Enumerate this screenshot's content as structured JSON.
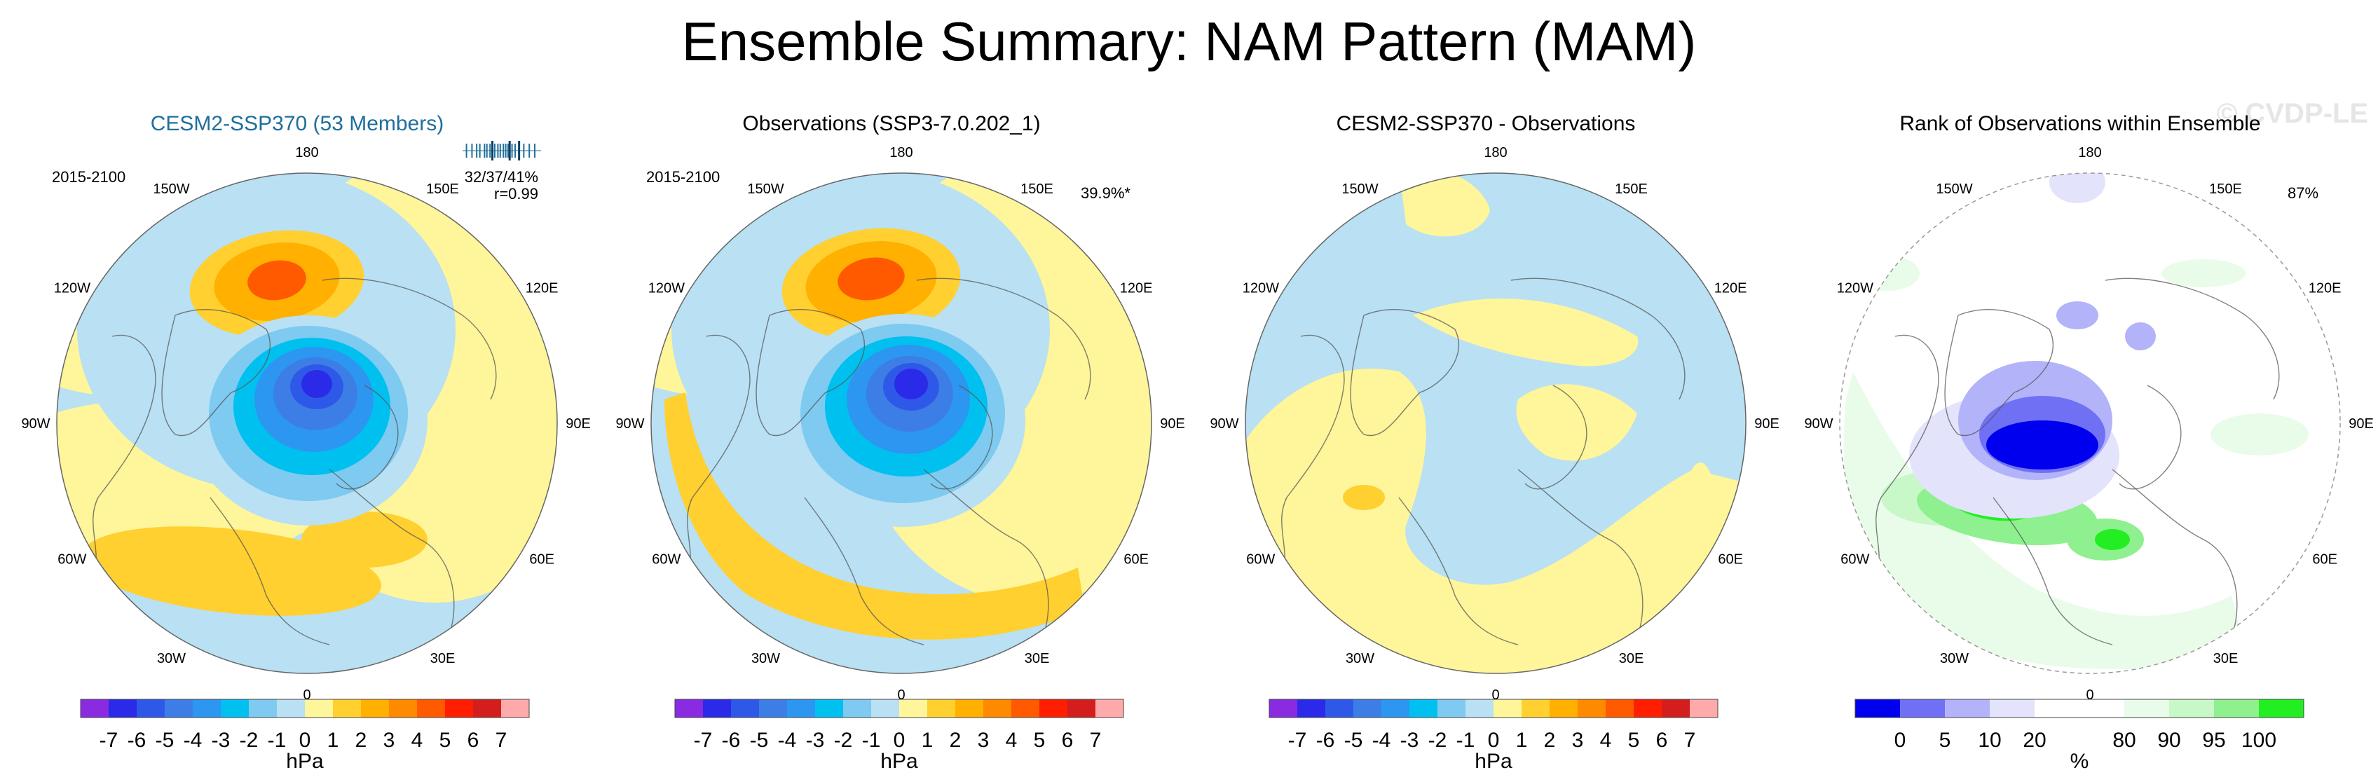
{
  "title": "Ensemble Summary: NAM Pattern (MAM)",
  "watermark": "© CVDP-LE",
  "lon_labels": [
    "180",
    "150E",
    "120E",
    "90E",
    "60E",
    "30E",
    "0",
    "30W",
    "60W",
    "90W",
    "120W",
    "150W"
  ],
  "colors": {
    "diff_scale": [
      "#8a2be2",
      "#2a2ae8",
      "#2e59e8",
      "#3d7ee6",
      "#2c96f0",
      "#00c0f0",
      "#7ecaf0",
      "#b9e0f3",
      "#fff59a",
      "#ffd030",
      "#ffb000",
      "#ff8a00",
      "#ff5a00",
      "#ff1e00",
      "#d41e1e",
      "#ffaaaa"
    ],
    "rank_scale": [
      "#0000ee",
      "#7070f5",
      "#b3b3fa",
      "#e3e3fb",
      "#ffffff",
      "#ffffff",
      "#e9fce9",
      "#c8f7c8",
      "#8ff08f",
      "#22ee22"
    ]
  },
  "chart_data": [
    {
      "type": "heatmap",
      "title": "CESM2-SSP370 (53 Members)",
      "period": "2015-2100",
      "stats": "32/37/41%",
      "corr": "r=0.99",
      "colorbar_label": "hPa",
      "colorbar_ticks": [
        "-7",
        "-6",
        "-5",
        "-4",
        "-3",
        "-2",
        "-1",
        "0",
        "1",
        "2",
        "3",
        "4",
        "5",
        "6",
        "7"
      ],
      "ensemble_spread_marks": [
        0.05,
        0.12,
        0.18,
        0.22,
        0.28,
        0.31,
        0.35,
        0.38,
        0.41,
        0.45,
        0.48,
        0.52,
        0.55,
        0.58,
        0.6,
        0.63,
        0.67,
        0.72,
        0.78,
        0.85,
        0.92
      ],
      "highlight_marks": [
        0.38,
        0.6,
        0.72
      ]
    },
    {
      "type": "heatmap",
      "title": "Observations (SSP3-7.0.202_1)",
      "period": "2015-2100",
      "pct": "39.9%*",
      "colorbar_label": "hPa",
      "colorbar_ticks": [
        "-7",
        "-6",
        "-5",
        "-4",
        "-3",
        "-2",
        "-1",
        "0",
        "1",
        "2",
        "3",
        "4",
        "5",
        "6",
        "7"
      ]
    },
    {
      "type": "heatmap",
      "title": "CESM2-SSP370 - Observations",
      "colorbar_label": "hPa",
      "colorbar_ticks": [
        "-7",
        "-6",
        "-5",
        "-4",
        "-3",
        "-2",
        "-1",
        "0",
        "1",
        "2",
        "3",
        "4",
        "5",
        "6",
        "7"
      ]
    },
    {
      "type": "heatmap",
      "title": "Rank of Observations within Ensemble",
      "pct": "87%",
      "colorbar_label": "%",
      "colorbar_ticks": [
        "0",
        "5",
        "10",
        "20",
        "80",
        "90",
        "95",
        "100"
      ]
    }
  ]
}
